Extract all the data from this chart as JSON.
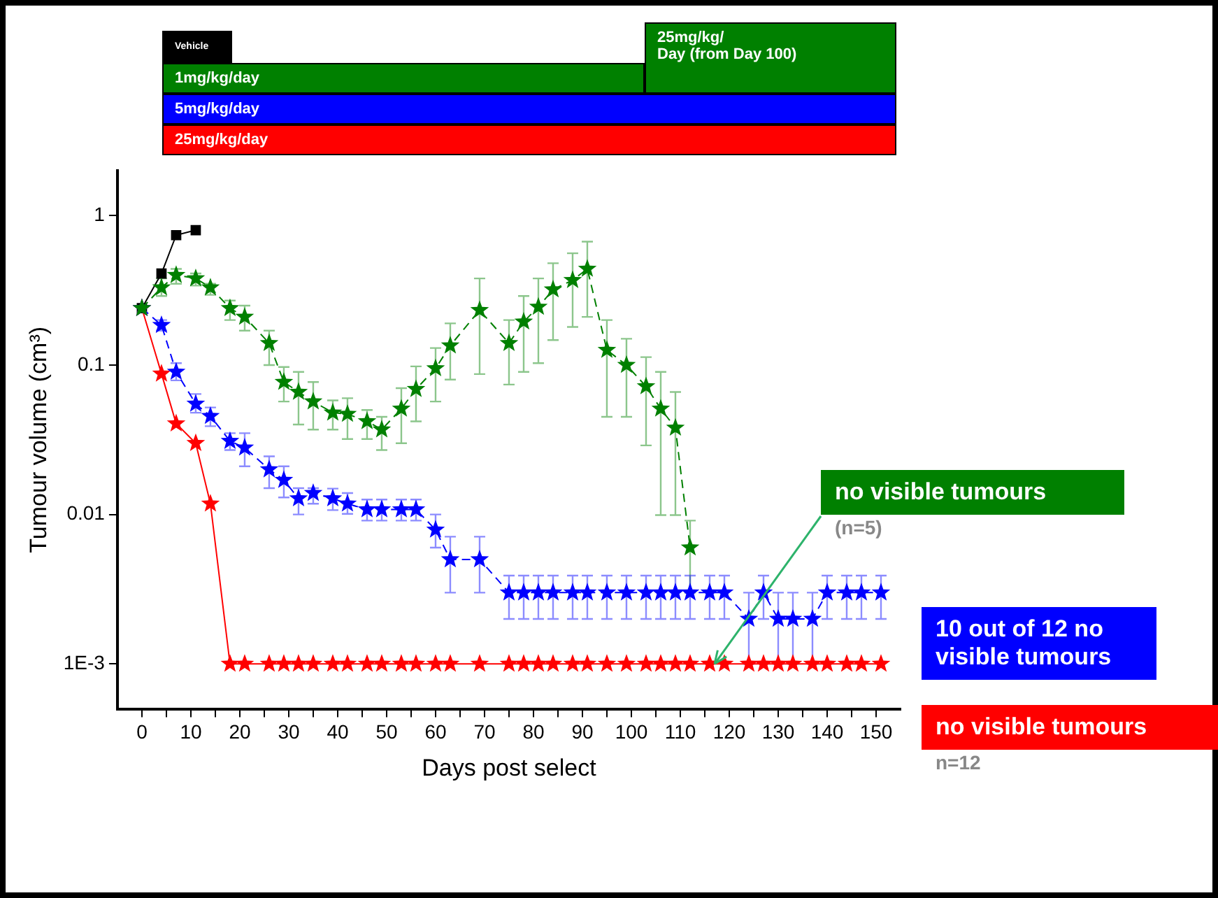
{
  "chart_data": {
    "type": "line",
    "xlabel": "Days post select",
    "ylabel": "Tumour volume (cm³)",
    "log": "y",
    "grid": false,
    "legend": "top",
    "xlim": [
      -5,
      155
    ],
    "xticks": [
      0,
      {
        "value": 5,
        "label": null
      },
      10,
      {
        "value": 15,
        "label": null
      },
      20,
      {
        "value": 25,
        "label": null
      },
      30,
      {
        "value": 35,
        "label": null
      },
      40,
      {
        "value": 45,
        "label": null
      },
      50,
      {
        "value": 55,
        "label": null
      },
      60,
      {
        "value": 65,
        "label": null
      },
      70,
      {
        "value": 75,
        "label": null
      },
      80,
      {
        "value": 85,
        "label": null
      },
      90,
      {
        "value": 95,
        "label": null
      },
      100,
      {
        "value": 105,
        "label": null
      },
      110,
      {
        "value": 115,
        "label": null
      },
      120,
      {
        "value": 125,
        "label": null
      },
      130,
      {
        "value": 135,
        "label": null
      },
      140,
      {
        "value": 145,
        "label": null
      },
      150
    ],
    "ylim": [
      0.0005,
      2
    ],
    "yticks": [
      {
        "value": 0.001,
        "label": "1E-3"
      },
      0.01,
      0.1,
      1
    ],
    "annotations": [
      "25mg/kg/\nDay (from Day 100)",
      {
        "text": "no visible tumours\n(n=5)",
        "x": 117,
        "y": 0.001
      },
      "10 out of 12 no\nvisible tumours",
      "no visible tumours\nn=12"
    ],
    "series": [
      {
        "name": "Vehicle",
        "color": "#000000",
        "marker": "square",
        "line_style": "solid",
        "x": [
          0,
          4,
          7,
          11
        ],
        "values": [
          0.24,
          0.41,
          0.74,
          0.8
        ]
      },
      {
        "name": "1mg/kg/day",
        "color": "#008000",
        "marker": "star",
        "line_style": "dashed",
        "x": [
          0,
          4,
          7,
          11,
          14,
          18,
          21,
          26,
          29,
          32,
          35,
          39,
          42,
          46,
          49,
          53,
          56,
          60,
          63,
          69,
          75,
          78,
          81,
          84,
          88,
          91,
          95,
          99,
          103,
          106,
          109,
          112
        ],
        "values": [
          0.24,
          0.33,
          0.4,
          0.38,
          0.33,
          0.24,
          0.21,
          0.14,
          0.077,
          0.066,
          0.057,
          0.048,
          0.047,
          0.042,
          0.037,
          0.051,
          0.069,
          0.095,
          0.135,
          0.233,
          0.14,
          0.195,
          0.245,
          0.32,
          0.37,
          0.44,
          0.126,
          0.1,
          0.072,
          0.051,
          0.038,
          0.006
        ],
        "errors": [
          null,
          [
            0.29,
            0.38
          ],
          [
            0.35,
            0.44
          ],
          [
            0.34,
            0.41
          ],
          [
            0.295,
            0.35
          ],
          [
            0.2,
            0.27
          ],
          [
            0.17,
            0.25
          ],
          [
            0.1,
            0.17
          ],
          [
            0.057,
            0.097
          ],
          [
            0.04,
            0.09
          ],
          [
            0.037,
            0.077
          ],
          [
            0.037,
            0.058
          ],
          [
            0.032,
            0.06
          ],
          [
            0.032,
            0.05
          ],
          [
            0.027,
            0.045
          ],
          [
            0.03,
            0.07
          ],
          [
            0.042,
            0.098
          ],
          [
            0.057,
            0.13
          ],
          [
            0.08,
            0.19
          ],
          [
            0.087,
            0.38
          ],
          [
            0.074,
            0.2
          ],
          [
            0.09,
            0.29
          ],
          [
            0.103,
            0.38
          ],
          [
            0.147,
            0.48
          ],
          [
            0.18,
            0.56
          ],
          [
            0.21,
            0.67
          ],
          [
            0.045,
            0.2
          ],
          [
            0.045,
            0.15
          ],
          [
            0.029,
            0.113
          ],
          [
            0.0099,
            0.09
          ],
          [
            0.0099,
            0.066
          ],
          [
            0.003,
            0.0091
          ]
        ]
      },
      {
        "name": "5mg/kg/day",
        "color": "#0000ff",
        "marker": "star",
        "line_style": "dashed",
        "x": [
          0,
          4,
          7,
          11,
          14,
          18,
          21,
          26,
          29,
          32,
          35,
          39,
          42,
          46,
          49,
          53,
          56,
          60,
          63,
          69,
          75,
          78,
          81,
          84,
          88,
          91,
          95,
          99,
          103,
          106,
          109,
          112,
          116,
          119,
          124,
          127,
          130,
          133,
          137,
          140,
          144,
          147,
          151
        ],
        "values": [
          0.24,
          0.185,
          0.09,
          0.055,
          0.0455,
          0.031,
          0.028,
          0.02,
          0.017,
          0.0128,
          0.0139,
          0.0128,
          0.0118,
          0.0108,
          0.0108,
          0.0108,
          0.0108,
          0.0079,
          0.005,
          0.005,
          0.003,
          0.003,
          0.003,
          0.003,
          0.003,
          0.003,
          0.003,
          0.003,
          0.003,
          0.003,
          0.003,
          0.003,
          0.003,
          0.003,
          0.002,
          0.003,
          0.002,
          0.002,
          0.002,
          0.003,
          0.003,
          0.003,
          0.003
        ],
        "errors": [
          null,
          [
            0.17,
            0.2
          ],
          [
            0.079,
            0.103
          ],
          [
            0.048,
            0.064
          ],
          [
            0.039,
            0.052
          ],
          [
            0.027,
            0.035
          ],
          [
            0.021,
            0.035
          ],
          [
            0.015,
            0.0245
          ],
          [
            0.013,
            0.021
          ],
          [
            0.01,
            0.015
          ],
          [
            0.0118,
            0.015
          ],
          [
            0.0107,
            0.0149
          ],
          [
            0.0101,
            0.0139
          ],
          [
            0.0091,
            0.0126
          ],
          [
            0.0091,
            0.0126
          ],
          [
            0.0091,
            0.0126
          ],
          [
            0.0091,
            0.0126
          ],
          [
            0.006,
            0.01
          ],
          [
            0.003,
            0.0071
          ],
          [
            0.003,
            0.0071
          ],
          [
            0.002,
            0.0039
          ],
          [
            0.002,
            0.0039
          ],
          [
            0.002,
            0.0039
          ],
          [
            0.002,
            0.0039
          ],
          [
            0.002,
            0.0039
          ],
          [
            0.002,
            0.0039
          ],
          [
            0.002,
            0.0039
          ],
          [
            0.002,
            0.0039
          ],
          [
            0.002,
            0.0039
          ],
          [
            0.002,
            0.0039
          ],
          [
            0.002,
            0.0039
          ],
          [
            0.002,
            0.0039
          ],
          [
            0.002,
            0.0039
          ],
          [
            0.002,
            0.0039
          ],
          [
            0.001,
            0.003
          ],
          [
            0.002,
            0.0039
          ],
          [
            0.001,
            0.003
          ],
          [
            0.001,
            0.003
          ],
          [
            0.001,
            0.003
          ],
          [
            0.002,
            0.0039
          ],
          [
            0.002,
            0.0039
          ],
          [
            0.002,
            0.0039
          ],
          [
            0.002,
            0.0039
          ]
        ]
      },
      {
        "name": "25mg/kg/day",
        "color": "#ff0000",
        "marker": "star",
        "line_style": "solid",
        "x": [
          0,
          4,
          7,
          11,
          14,
          18,
          21,
          26,
          29,
          32,
          35,
          39,
          42,
          46,
          49,
          53,
          56,
          60,
          63,
          69,
          75,
          78,
          81,
          84,
          88,
          91,
          95,
          99,
          103,
          106,
          109,
          112,
          116,
          119,
          124,
          127,
          130,
          133,
          137,
          140,
          144,
          147,
          151
        ],
        "values": [
          0.24,
          0.0875,
          0.0406,
          0.03,
          0.0118,
          0.001,
          0.001,
          0.001,
          0.001,
          0.001,
          0.001,
          0.001,
          0.001,
          0.001,
          0.001,
          0.001,
          0.001,
          0.001,
          0.001,
          0.001,
          0.001,
          0.001,
          0.001,
          0.001,
          0.001,
          0.001,
          0.001,
          0.001,
          0.001,
          0.001,
          0.001,
          0.001,
          0.001,
          0.001,
          0.001,
          0.001,
          0.001,
          0.001,
          0.001,
          0.001,
          0.001,
          0.001,
          0.001
        ]
      }
    ]
  }
}
